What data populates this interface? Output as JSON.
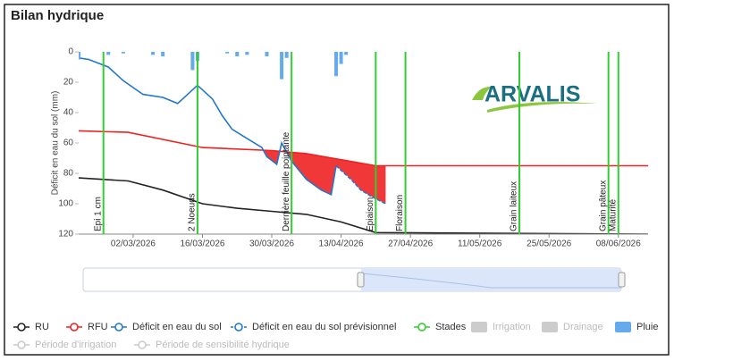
{
  "chart_data": {
    "type": "line",
    "title": "Bilan hydrique",
    "y_title": "Déficit en eau du sol (mm)",
    "logo": "ARVALIS",
    "ylim": [
      0,
      120
    ],
    "y_reversed": true,
    "yticks": [
      0,
      20,
      40,
      60,
      80,
      100,
      120
    ],
    "xlim": [
      "2026-02-19",
      "2026-06-14"
    ],
    "xticks": [
      {
        "value": "2026-03-02",
        "label": "02/03/2026"
      },
      {
        "value": "2026-03-16",
        "label": "16/03/2026"
      },
      {
        "value": "2026-03-30",
        "label": "30/03/2026"
      },
      {
        "value": "2026-04-13",
        "label": "13/04/2026"
      },
      {
        "value": "2026-04-27",
        "label": "27/04/2026"
      },
      {
        "value": "2026-05-11",
        "label": "11/05/2026"
      },
      {
        "value": "2026-05-25",
        "label": "25/05/2026"
      },
      {
        "value": "2026-06-08",
        "label": "08/06/2026"
      }
    ],
    "series": [
      {
        "name": "RU",
        "color": "#222222",
        "style": "line",
        "x": [
          "2026-02-19",
          "2026-03-01",
          "2026-03-08",
          "2026-03-16",
          "2026-03-23",
          "2026-03-30",
          "2026-04-06",
          "2026-04-13",
          "2026-04-20",
          "2026-06-14"
        ],
        "values": [
          83,
          85,
          91,
          100,
          103,
          105,
          107,
          112,
          119,
          120
        ]
      },
      {
        "name": "RFU",
        "color": "#ee2222",
        "style": "line",
        "x": [
          "2026-02-19",
          "2026-03-01",
          "2026-03-16",
          "2026-03-30",
          "2026-04-06",
          "2026-04-20",
          "2026-06-14"
        ],
        "values": [
          52,
          53,
          63,
          65,
          67,
          75,
          75
        ]
      },
      {
        "name": "Déficit en eau du sol",
        "color": "#2277cc",
        "style": "line",
        "x": [
          "2026-02-19",
          "2026-02-21",
          "2026-02-25",
          "2026-02-28",
          "2026-03-04",
          "2026-03-08",
          "2026-03-11",
          "2026-03-15",
          "2026-03-18",
          "2026-03-20",
          "2026-03-22",
          "2026-03-25",
          "2026-03-28",
          "2026-03-29",
          "2026-03-31",
          "2026-04-01",
          "2026-04-03",
          "2026-04-06",
          "2026-04-09",
          "2026-04-11",
          "2026-04-12"
        ],
        "values": [
          4,
          5,
          10,
          19,
          28,
          30,
          34,
          22,
          31,
          42,
          51,
          57,
          63,
          69,
          74,
          60,
          72,
          84,
          91,
          94,
          75
        ]
      },
      {
        "name": "Déficit en eau du sol prévisionnel",
        "color": "#2277cc",
        "style": "dashed",
        "x": [
          "2026-04-12",
          "2026-04-15",
          "2026-04-17",
          "2026-04-19",
          "2026-04-22"
        ],
        "values": [
          75,
          84,
          91,
          95,
          100
        ]
      },
      {
        "name": "Stades",
        "color": "#33cc33",
        "style": "stages",
        "stages": [
          {
            "date": "2026-02-24",
            "label": "Epi 1 cm"
          },
          {
            "date": "2026-03-15",
            "label": "2 Noeuds"
          },
          {
            "date": "2026-04-03",
            "label": "Dernière feuille pointante"
          },
          {
            "date": "2026-04-20",
            "label": "Epiaison"
          },
          {
            "date": "2026-04-26",
            "label": "Floraison"
          },
          {
            "date": "2026-05-19",
            "label": "Grain laiteux"
          },
          {
            "date": "2026-06-06",
            "label": "Grain pâteux"
          },
          {
            "date": "2026-06-08",
            "label": "Maturité"
          }
        ]
      },
      {
        "name": "Irrigation",
        "color": "#cccccc",
        "style": "column",
        "hidden": true
      },
      {
        "name": "Drainage",
        "color": "#cccccc",
        "style": "column",
        "hidden": true
      },
      {
        "name": "Pluie",
        "color": "#66aaee",
        "style": "column",
        "x": [
          "2026-02-19",
          "2026-02-25",
          "2026-02-28",
          "2026-03-06",
          "2026-03-08",
          "2026-03-14",
          "2026-03-15",
          "2026-03-21",
          "2026-03-23",
          "2026-03-25",
          "2026-03-29",
          "2026-04-01",
          "2026-04-02",
          "2026-04-12",
          "2026-04-13",
          "2026-04-14"
        ],
        "values": [
          5,
          2,
          1,
          2,
          3,
          12,
          6,
          1,
          3,
          2,
          3,
          18,
          4,
          16,
          8,
          2
        ]
      },
      {
        "name": "Période d'irrigation",
        "color": "#cccccc",
        "style": "period",
        "hidden": true
      },
      {
        "name": "Période de sensibilité hydrique",
        "color": "#cccccc",
        "style": "period",
        "hidden": true
      }
    ]
  }
}
